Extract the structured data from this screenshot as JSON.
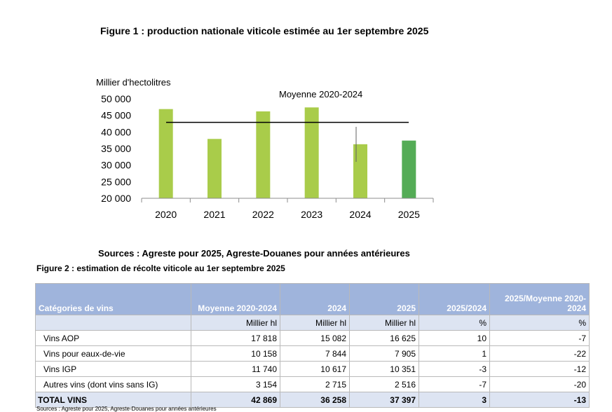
{
  "figure1": {
    "title": "Figure 1 : production nationale viticole estimée au 1er septembre 2025",
    "source": "Sources : Agreste pour 2025, Agreste-Douanes pour années antérieures"
  },
  "chart_data": {
    "type": "bar",
    "ylabel": "Millier d'hectolitres",
    "categories": [
      "2020",
      "2021",
      "2022",
      "2023",
      "2024",
      "2025"
    ],
    "values": [
      46900,
      37900,
      46200,
      47400,
      36300,
      37400
    ],
    "ylim": [
      20000,
      50000
    ],
    "yticks": [
      20000,
      25000,
      30000,
      35000,
      40000,
      45000,
      50000
    ],
    "ytick_labels": [
      "20 000",
      "25 000",
      "30 000",
      "35 000",
      "40 000",
      "45 000",
      "50 000"
    ],
    "average": {
      "label": "Moyenne 2020-2024",
      "value": 42900
    },
    "bar_color": "#a9cc4a",
    "highlight_color": "#54ac56",
    "grid": false
  },
  "figure2": {
    "title": "Figure 2 : estimation de récolte viticole au 1er septembre 2025",
    "headers": [
      "Catégories de vins",
      "Moyenne 2020-2024",
      "2024",
      "2025",
      "2025/2024",
      "2025/Moyenne 2020-2024"
    ],
    "units": [
      "",
      "Millier hl",
      "Millier hl",
      "Millier hl",
      "%",
      "%"
    ],
    "rows": [
      [
        "Vins AOP",
        "17 818",
        "15 082",
        "16 625",
        "10",
        "-7"
      ],
      [
        "Vins pour eaux-de-vie",
        "10 158",
        "7 844",
        "7 905",
        "1",
        "-22"
      ],
      [
        "Vins IGP",
        "11 740",
        "10 617",
        "10 351",
        "-3",
        "-12"
      ],
      [
        "Autres vins (dont vins sans IG)",
        "3 154",
        "2 715",
        "2 516",
        "-7",
        "-20"
      ]
    ],
    "total": [
      "TOTAL VINS",
      "42 869",
      "36 258",
      "37 397",
      "3",
      "-13"
    ],
    "source": "Sources : Agreste pour 2025, Agreste-Douanes pour années antérieures"
  }
}
